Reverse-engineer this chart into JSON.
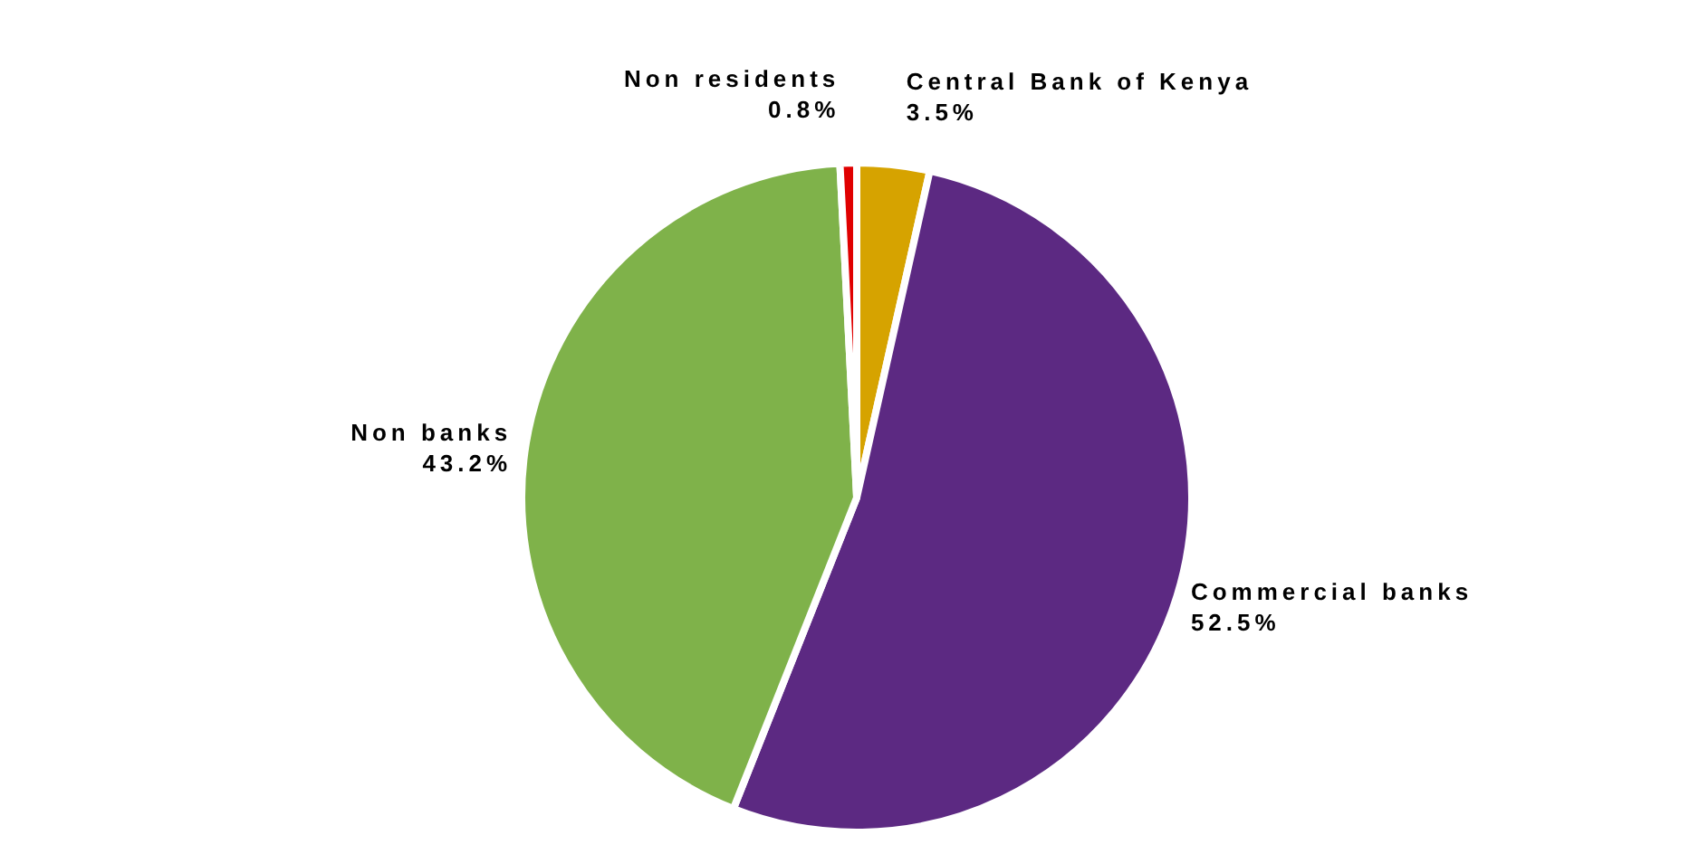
{
  "chart_data": {
    "type": "pie",
    "categories": [
      "Central Bank of Kenya",
      "Commercial banks",
      "Non banks",
      "Non residents"
    ],
    "values": [
      3.5,
      52.5,
      43.2,
      0.8
    ],
    "colors": [
      "#d6a300",
      "#5c2982",
      "#7fb24a",
      "#e00000"
    ],
    "data_labels": true,
    "value_labels": [
      "3.5%",
      "52.5%",
      "43.2%",
      "0.8%"
    ],
    "legend": false
  }
}
